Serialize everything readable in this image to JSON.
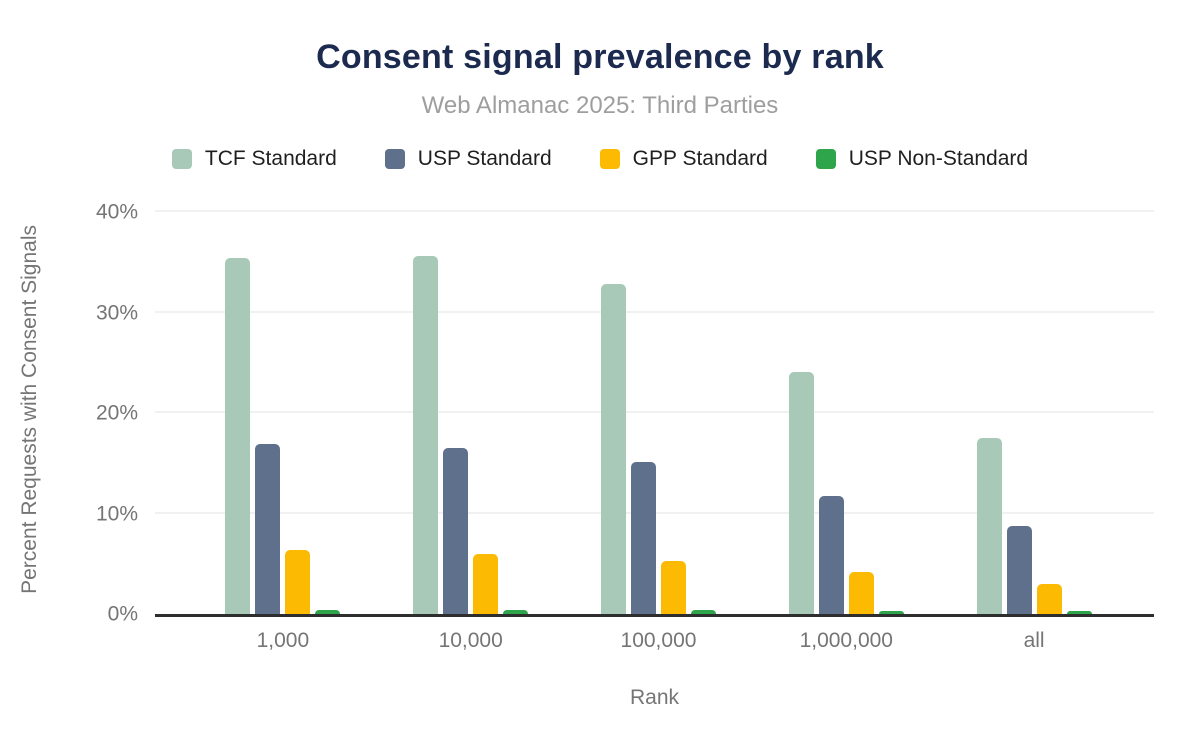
{
  "header": {
    "title": "Consent signal prevalence by rank",
    "subtitle": "Web Almanac 2025: Third Parties"
  },
  "chart_data": {
    "type": "bar",
    "title": "Consent signal prevalence by rank",
    "subtitle": "Web Almanac 2025: Third Parties",
    "xlabel": "Rank",
    "ylabel": "Percent Requests with Consent Signals",
    "categories": [
      "1,000",
      "10,000",
      "100,000",
      "1,000,000",
      "all"
    ],
    "series": [
      {
        "name": "TCF Standard",
        "color": "#a9c9b8",
        "values": [
          35.4,
          35.6,
          32.8,
          24.1,
          17.5
        ]
      },
      {
        "name": "USP Standard",
        "color": "#5f708c",
        "values": [
          16.9,
          16.5,
          15.1,
          11.7,
          8.8
        ]
      },
      {
        "name": "GPP Standard",
        "color": "#fcba03",
        "values": [
          6.4,
          6.0,
          5.3,
          4.2,
          3.0
        ]
      },
      {
        "name": "USP Non-Standard",
        "color": "#2ea44b",
        "values": [
          0.4,
          0.4,
          0.4,
          0.3,
          0.3
        ]
      }
    ],
    "ylim": [
      0,
      40
    ],
    "yticks": [
      "0%",
      "10%",
      "20%",
      "30%",
      "40%"
    ],
    "grid": true,
    "legend_position": "top"
  },
  "colors": {
    "title": "#1b2a4e",
    "subtitle": "#9e9e9e",
    "axis_text": "#757575",
    "legend_text": "#1f1f1f",
    "gridline": "#f1f1f1",
    "axis_line": "#2e2e2e",
    "background": "#ffffff"
  }
}
